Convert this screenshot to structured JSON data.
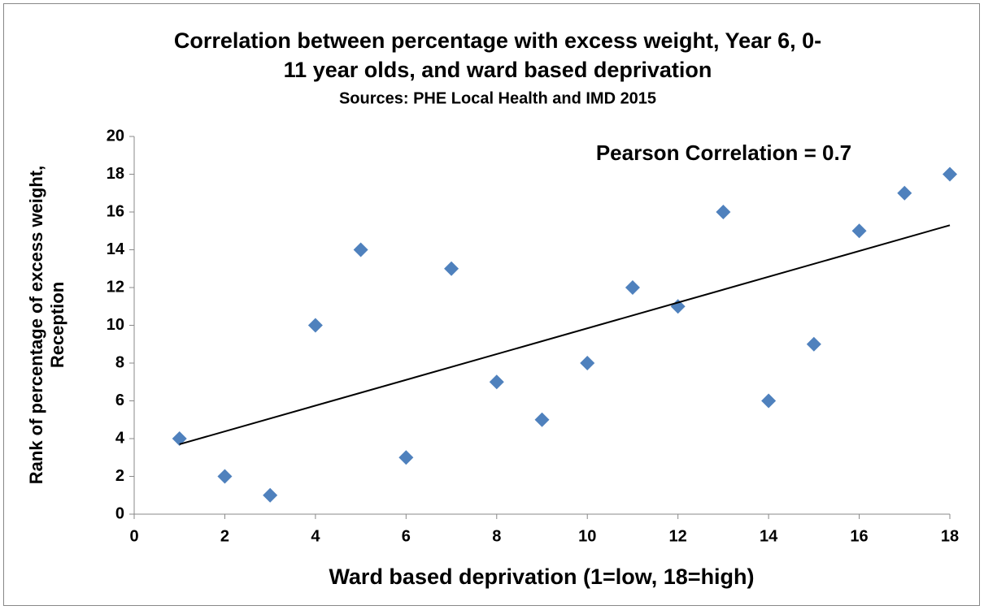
{
  "chart_data": {
    "type": "scatter",
    "title": [
      "Correlation between percentage with excess weight, Year 6, 0-",
      "11 year olds, and ward based deprivation"
    ],
    "subtitle": "Sources: PHE Local Health and IMD 2015",
    "annotation": "Pearson Correlation = 0.7",
    "x_label": "Ward based deprivation (1=low, 18=high)",
    "y_label": [
      "Rank of percentage of excess weight,",
      "Reception"
    ],
    "series": [
      {
        "color": "#4f81bd",
        "x": [
          1,
          2,
          3,
          4,
          5,
          6,
          7,
          8,
          9,
          10,
          11,
          12,
          13,
          14,
          15,
          16,
          17,
          18
        ],
        "values": [
          4,
          2,
          1,
          10,
          14,
          3,
          13,
          7,
          5,
          8,
          12,
          11,
          16,
          6,
          9,
          15,
          17,
          18
        ]
      }
    ],
    "trendline": {
      "x": [
        1,
        18
      ],
      "values": [
        3.7,
        15.3
      ],
      "color": "#000000"
    },
    "xlim": [
      0,
      18
    ],
    "xticks": [
      0,
      2,
      4,
      6,
      8,
      10,
      12,
      14,
      16,
      18
    ],
    "ylim": [
      0,
      20
    ],
    "yticks": [
      0,
      2,
      4,
      6,
      8,
      10,
      12,
      14,
      16,
      18,
      20
    ],
    "grid": false
  }
}
